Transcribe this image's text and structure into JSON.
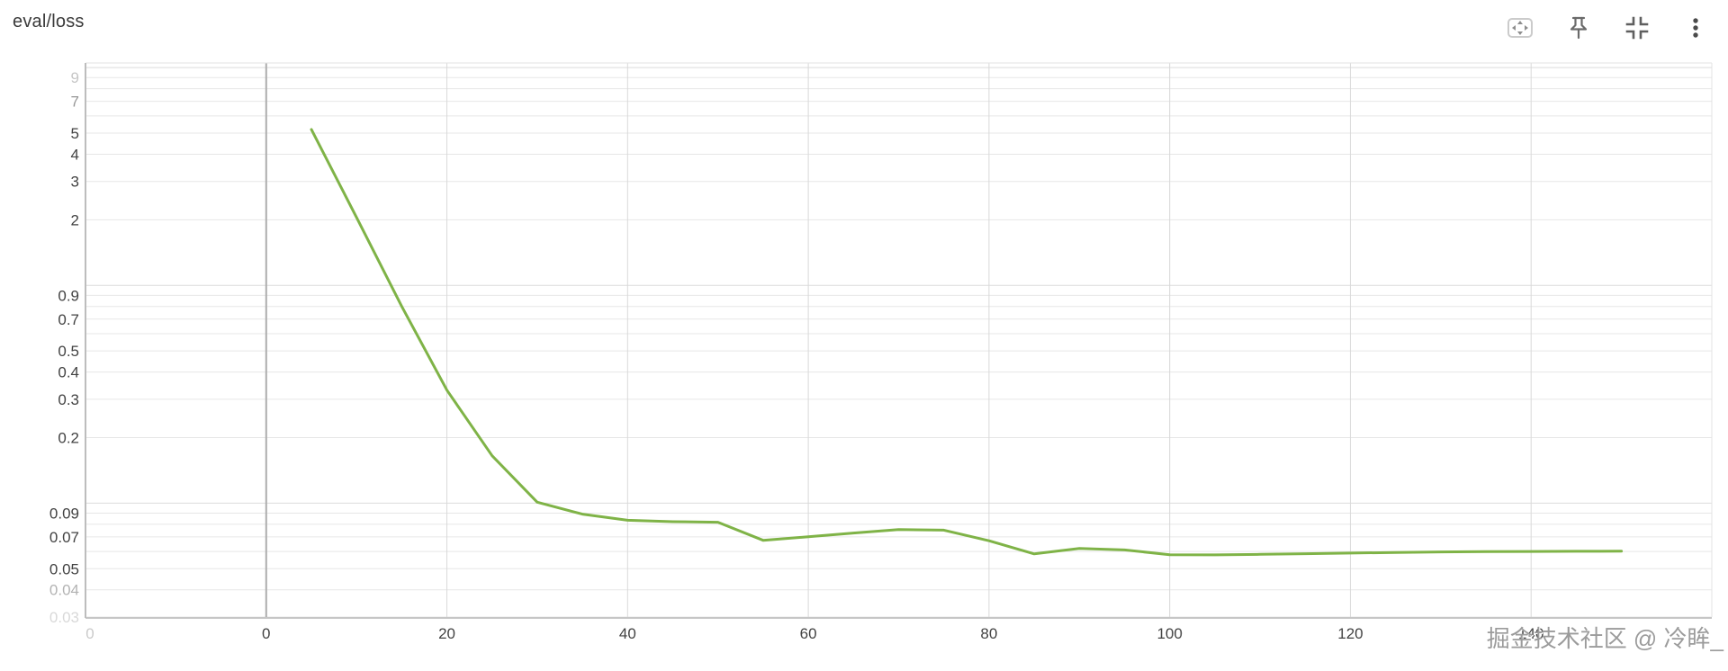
{
  "header": {
    "title": "eval/loss",
    "icons": [
      "fit-view-icon",
      "pin-icon",
      "collapse-panel-icon",
      "kebab-menu-icon"
    ]
  },
  "watermark": {
    "text": "掘金技术社区 @ 冷眸_"
  },
  "colors": {
    "line": "#7fb347",
    "tick_label": "#424242",
    "zero_gridline": "#adadad",
    "watermark": "#9b9b9b"
  },
  "chart_data": {
    "type": "line",
    "title": "eval/loss",
    "xlabel": "",
    "ylabel": "",
    "y_scale": "log",
    "grid": true,
    "legend": "none",
    "xlim": [
      -20,
      160
    ],
    "ylim": [
      0.03,
      10.5
    ],
    "series": [
      {
        "name": "eval/loss",
        "color": "#7fb347",
        "x": [
          5,
          10,
          15,
          20,
          25,
          30,
          35,
          40,
          45,
          50,
          55,
          60,
          65,
          70,
          75,
          80,
          85,
          90,
          95,
          100,
          105,
          110,
          115,
          120,
          125,
          130,
          135,
          140,
          145,
          150
        ],
        "y": [
          5.2,
          2.05,
          0.8,
          0.33,
          0.165,
          0.101,
          0.089,
          0.0835,
          0.0822,
          0.0817,
          0.0675,
          0.0701,
          0.0729,
          0.0757,
          0.0752,
          0.0672,
          0.0585,
          0.062,
          0.061,
          0.058,
          0.0579,
          0.0582,
          0.0586,
          0.059,
          0.0594,
          0.0597,
          0.0599,
          0.06,
          0.0601,
          0.0602
        ]
      }
    ],
    "x_ticks": [
      0,
      20,
      40,
      60,
      80,
      100,
      120,
      140
    ],
    "x_tick_labels": [
      "0",
      "20",
      "40",
      "60",
      "80",
      "100",
      "120",
      "140"
    ],
    "ghost_x_label": "0",
    "y_gridlines": [
      10,
      9,
      8,
      7,
      6,
      5,
      4,
      3,
      2,
      1,
      0.9,
      0.8,
      0.7,
      0.6,
      0.5,
      0.4,
      0.3,
      0.2,
      0.1,
      0.09,
      0.08,
      0.07,
      0.06,
      0.05,
      0.04,
      0.03
    ],
    "y_tick_labels": [
      {
        "value": 9,
        "label": "9",
        "opacity": 0.3
      },
      {
        "value": 7,
        "label": "7",
        "opacity": 0.55
      },
      {
        "value": 5,
        "label": "5",
        "opacity": 1
      },
      {
        "value": 4,
        "label": "4",
        "opacity": 1
      },
      {
        "value": 3,
        "label": "3",
        "opacity": 1
      },
      {
        "value": 2,
        "label": "2",
        "opacity": 1
      },
      {
        "value": 0.9,
        "label": "0.9",
        "opacity": 1
      },
      {
        "value": 0.7,
        "label": "0.7",
        "opacity": 1
      },
      {
        "value": 0.5,
        "label": "0.5",
        "opacity": 1
      },
      {
        "value": 0.4,
        "label": "0.4",
        "opacity": 1
      },
      {
        "value": 0.3,
        "label": "0.3",
        "opacity": 1
      },
      {
        "value": 0.2,
        "label": "0.2",
        "opacity": 1
      },
      {
        "value": 0.09,
        "label": "0.09",
        "opacity": 1
      },
      {
        "value": 0.07,
        "label": "0.07",
        "opacity": 1
      },
      {
        "value": 0.05,
        "label": "0.05",
        "opacity": 1
      },
      {
        "value": 0.04,
        "label": "0.04",
        "opacity": 0.4
      },
      {
        "value": 0.03,
        "label": "0.03",
        "opacity": 0.2
      }
    ]
  }
}
